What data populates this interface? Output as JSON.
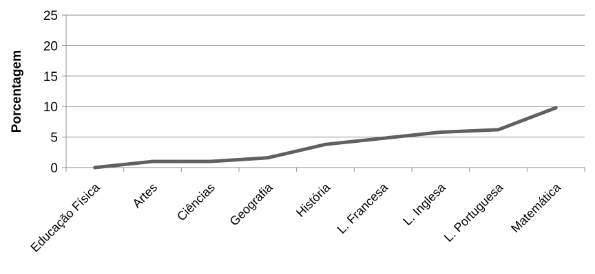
{
  "chart_data": {
    "type": "line",
    "title": "",
    "xlabel": "",
    "ylabel": "Porcentagem",
    "ylim": [
      0,
      25
    ],
    "yticks": [
      0,
      5,
      10,
      15,
      20,
      25
    ],
    "grid": true,
    "categories": [
      "Educação Física",
      "Artes",
      "Ciências",
      "Geografia",
      "História",
      "L. Francesa",
      "L. Inglesa",
      "L. Portuguesa",
      "Matemática"
    ],
    "series": [
      {
        "values": [
          0,
          1,
          1,
          1.6,
          3.8,
          4.8,
          5.8,
          6.2,
          9.8
        ],
        "color": "#606060"
      }
    ]
  }
}
